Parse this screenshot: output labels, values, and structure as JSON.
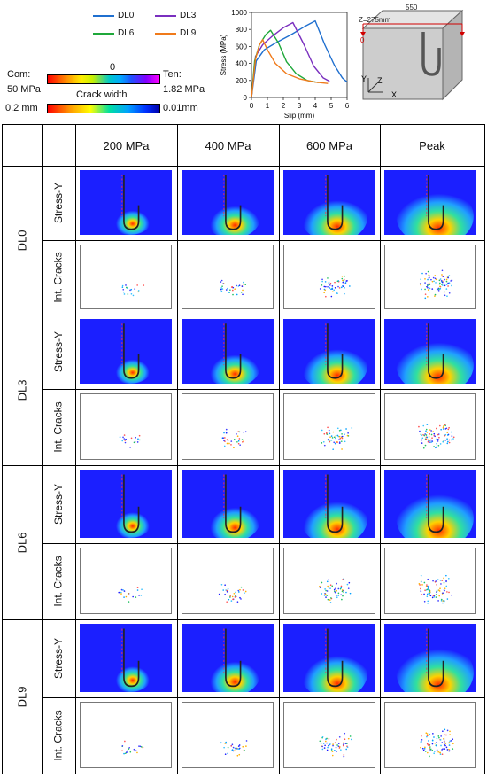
{
  "legend": {
    "com_label": "Com:",
    "com_value": "50 MPa",
    "zero_label": "0",
    "ten_label": "Ten:",
    "ten_value": "1.82 MPa",
    "crack_title": "Crack width",
    "crack_max": "0.2 mm",
    "crack_min": "0.01mm"
  },
  "series_legend": [
    {
      "name": "DL0",
      "color": "#1f6fcf"
    },
    {
      "name": "DL3",
      "color": "#7a2fbf"
    },
    {
      "name": "DL6",
      "color": "#1fa83a"
    },
    {
      "name": "DL9",
      "color": "#f07a1a"
    }
  ],
  "chart_data": {
    "type": "line",
    "title": "",
    "xlabel": "Slip (mm)",
    "ylabel": "Stress (MPa)",
    "xlim": [
      0,
      6
    ],
    "ylim": [
      0,
      1000
    ],
    "xticks": [
      "0",
      "1",
      "2",
      "3",
      "4",
      "5",
      "6"
    ],
    "yticks": [
      "0",
      "200",
      "400",
      "600",
      "800",
      "1000"
    ],
    "series": [
      {
        "name": "DL0",
        "color": "#1f6fcf",
        "x": [
          0,
          0.3,
          0.8,
          1.5,
          2.5,
          3.3,
          4.0,
          4.6,
          5.2,
          5.7,
          6.0
        ],
        "y": [
          0,
          430,
          560,
          640,
          740,
          830,
          900,
          620,
          380,
          230,
          180
        ]
      },
      {
        "name": "DL3",
        "color": "#7a2fbf",
        "x": [
          0,
          0.25,
          0.7,
          1.3,
          2.0,
          2.6,
          3.3,
          3.9,
          4.5,
          4.9
        ],
        "y": [
          0,
          480,
          620,
          720,
          820,
          880,
          620,
          370,
          230,
          190
        ]
      },
      {
        "name": "DL6",
        "color": "#1fa83a",
        "x": [
          0,
          0.2,
          0.5,
          0.9,
          1.2,
          1.7,
          2.2,
          2.8,
          3.5,
          4.2
        ],
        "y": [
          0,
          430,
          620,
          740,
          790,
          640,
          420,
          280,
          200,
          175
        ]
      },
      {
        "name": "DL9",
        "color": "#f07a1a",
        "x": [
          0,
          0.25,
          0.5,
          0.7,
          1.0,
          1.5,
          2.2,
          3.0,
          4.0,
          4.8
        ],
        "y": [
          0,
          450,
          620,
          680,
          560,
          400,
          280,
          220,
          180,
          165
        ]
      }
    ]
  },
  "cube": {
    "width_label": "550",
    "z_label": "Z=275mm",
    "zero_label": "0",
    "axis_y": "Y",
    "axis_z": "Z",
    "axis_x": "X"
  },
  "columns": [
    "200 MPa",
    "400 MPa",
    "600 MPa",
    "Peak"
  ],
  "specimens": [
    "DL0",
    "DL3",
    "DL6",
    "DL9"
  ],
  "row_labels": {
    "stress": "Stress-Y",
    "crack": "Int. Cracks"
  }
}
